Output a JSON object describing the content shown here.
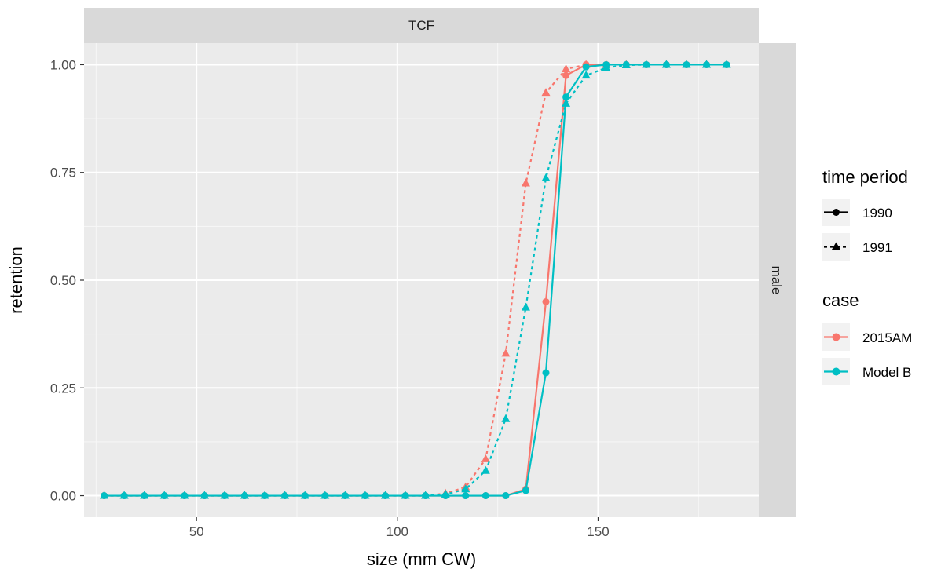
{
  "chart_data": {
    "type": "line",
    "facet_top": "TCF",
    "facet_right": "male",
    "xlabel": "size (mm CW)",
    "ylabel": "retention",
    "xlim": [
      22,
      190
    ],
    "ylim": [
      -0.05,
      1.05
    ],
    "x_ticks": [
      50,
      100,
      150
    ],
    "x_tick_labels": [
      "50",
      "100",
      "150"
    ],
    "y_ticks": [
      0,
      0.25,
      0.5,
      0.75,
      1
    ],
    "y_tick_labels": [
      "0.00",
      "0.25",
      "0.50",
      "0.75",
      "1.00"
    ],
    "grid": true,
    "legend_position": "right",
    "legend": {
      "time_period": {
        "title": "time period",
        "items": [
          {
            "label": "1990",
            "linetype": "solid",
            "shape": "circle"
          },
          {
            "label": "1991",
            "linetype": "dashed",
            "shape": "triangle"
          }
        ]
      },
      "case": {
        "title": "case",
        "items": [
          {
            "label": "2015AM",
            "color": "#F8766D"
          },
          {
            "label": "Model B",
            "color": "#00BFC4"
          }
        ]
      }
    },
    "x": [
      27,
      32,
      37,
      42,
      47,
      52,
      57,
      62,
      67,
      72,
      77,
      82,
      87,
      92,
      97,
      102,
      107,
      112,
      117,
      122,
      127,
      132,
      137,
      142,
      147,
      152,
      157,
      162,
      167,
      172,
      177,
      182
    ],
    "series": [
      {
        "case": "2015AM",
        "period": "1990",
        "color": "#F8766D",
        "linetype": "solid",
        "shape": "circle",
        "values": [
          0,
          0,
          0,
          0,
          0,
          0,
          0,
          0,
          0,
          0,
          0,
          0,
          0,
          0,
          0,
          0,
          0,
          0,
          0,
          0,
          0,
          0.015,
          0.45,
          0.975,
          1.0,
          1.0,
          1.0,
          1.0,
          1.0,
          1.0,
          1.0,
          1.0
        ]
      },
      {
        "case": "2015AM",
        "period": "1991",
        "color": "#F8766D",
        "linetype": "dashed",
        "shape": "triangle",
        "values": [
          0,
          0,
          0,
          0,
          0,
          0,
          0,
          0,
          0,
          0,
          0,
          0,
          0,
          0,
          0,
          0,
          0,
          0.005,
          0.02,
          0.085,
          0.33,
          0.725,
          0.935,
          0.99,
          1.0,
          1.0,
          1.0,
          1.0,
          1.0,
          1.0,
          1.0,
          1.0
        ]
      },
      {
        "case": "Model B",
        "period": "1991",
        "color": "#00BFC4",
        "linetype": "dashed",
        "shape": "triangle",
        "values": [
          0,
          0,
          0,
          0,
          0,
          0,
          0,
          0,
          0,
          0,
          0,
          0,
          0,
          0,
          0,
          0,
          0,
          0.003,
          0.015,
          0.058,
          0.178,
          0.437,
          0.737,
          0.91,
          0.975,
          0.993,
          0.999,
          1.0,
          1.0,
          1.0,
          1.0,
          1.0
        ]
      },
      {
        "case": "Model B",
        "period": "1990",
        "color": "#00BFC4",
        "linetype": "solid",
        "shape": "circle",
        "values": [
          0,
          0,
          0,
          0,
          0,
          0,
          0,
          0,
          0,
          0,
          0,
          0,
          0,
          0,
          0,
          0,
          0,
          0,
          0,
          0,
          0,
          0.012,
          0.285,
          0.925,
          0.995,
          1.0,
          1.0,
          1.0,
          1.0,
          1.0,
          1.0,
          1.0
        ]
      }
    ]
  }
}
